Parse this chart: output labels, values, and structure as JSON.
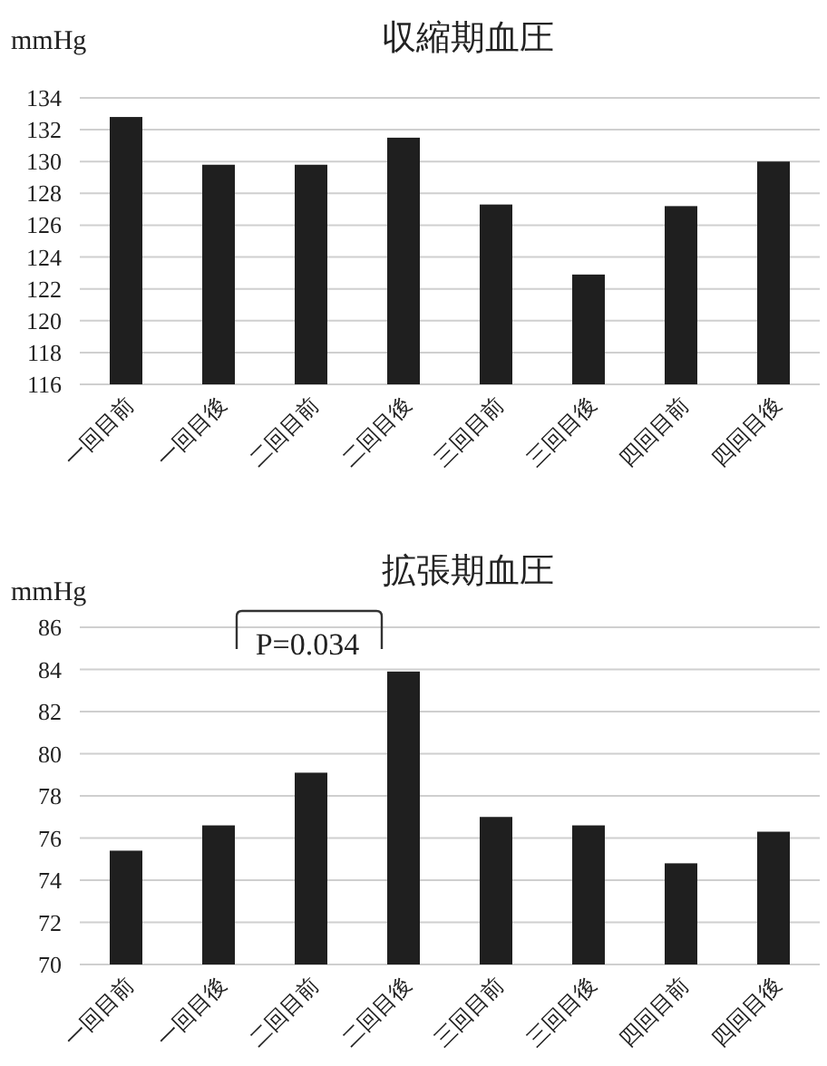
{
  "chart_data": [
    {
      "type": "bar",
      "title": "収縮期血圧",
      "ylabel": "mmHg",
      "categories": [
        "一回目前",
        "一回目後",
        "二回目前",
        "二回目後",
        "三回目前",
        "三回目後",
        "四回目前",
        "四回目後"
      ],
      "series": [
        {
          "color": "#1f1f1f",
          "values": [
            132.8,
            129.8,
            129.8,
            131.5,
            127.3,
            122.9,
            127.2,
            130.0
          ]
        }
      ],
      "ylim": [
        116,
        134
      ],
      "yticks": [
        116,
        118,
        120,
        122,
        124,
        126,
        128,
        130,
        132,
        134
      ],
      "grid": "y"
    },
    {
      "type": "bar",
      "title": "拡張期血圧",
      "ylabel": "mmHg",
      "categories": [
        "一回目前",
        "一回目後",
        "二回目前",
        "二回目後",
        "三回目前",
        "三回目後",
        "四回目前",
        "四回目後"
      ],
      "series": [
        {
          "color": "#1f1f1f",
          "values": [
            75.4,
            76.6,
            79.1,
            83.9,
            77.0,
            76.6,
            74.8,
            76.3
          ]
        }
      ],
      "ylim": [
        70,
        86
      ],
      "yticks": [
        70,
        72,
        74,
        76,
        78,
        80,
        82,
        84,
        86
      ],
      "grid": "y",
      "annotations": [
        "P=0.034"
      ]
    }
  ]
}
